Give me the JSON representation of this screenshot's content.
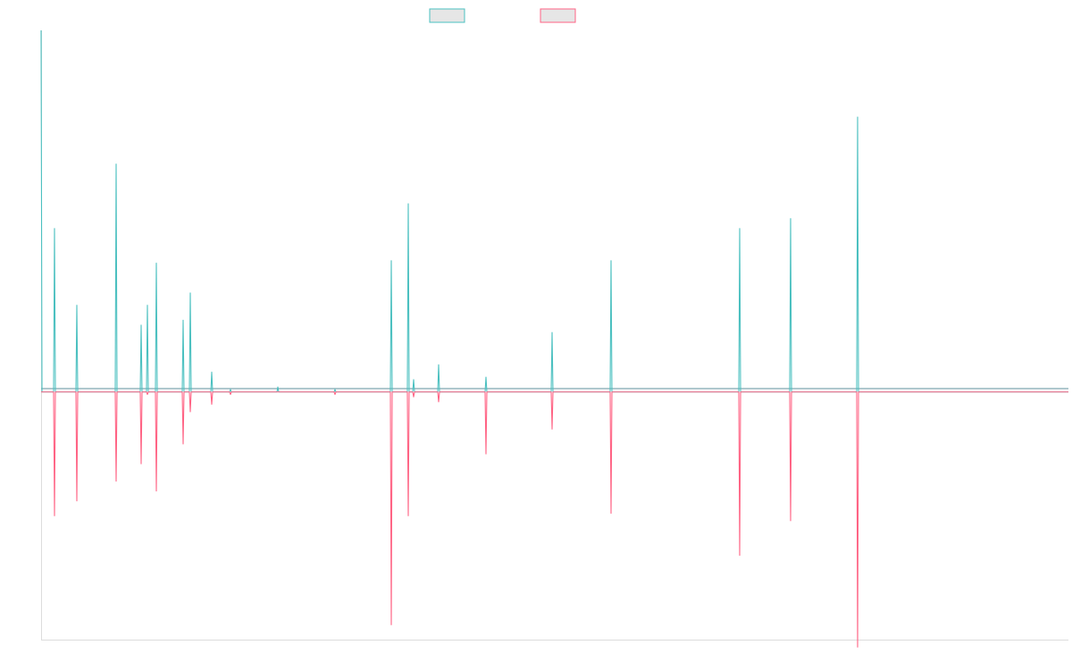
{
  "chart_data": {
    "type": "line",
    "title": "",
    "xlabel": "",
    "ylabel": "",
    "grid": false,
    "legend_position": "top-center",
    "ylim": [
      -100,
      146
    ],
    "xlim": [
      0,
      1150
    ],
    "series": [
      {
        "name": "",
        "color": "#4bc0c0",
        "fill": "#e6e6e6",
        "points": [
          [
            0,
            146
          ],
          [
            1,
            0
          ],
          [
            14,
            0
          ],
          [
            15,
            66
          ],
          [
            16,
            0
          ],
          [
            39,
            0
          ],
          [
            40,
            35
          ],
          [
            41,
            0
          ],
          [
            83,
            0
          ],
          [
            84,
            92
          ],
          [
            85,
            0
          ],
          [
            111,
            0
          ],
          [
            112,
            27
          ],
          [
            113,
            0
          ],
          [
            118,
            0
          ],
          [
            119,
            35
          ],
          [
            120,
            0
          ],
          [
            128,
            0
          ],
          [
            129,
            52
          ],
          [
            130,
            0
          ],
          [
            158,
            0
          ],
          [
            159,
            29
          ],
          [
            160,
            0
          ],
          [
            166,
            0
          ],
          [
            167,
            40
          ],
          [
            168,
            0
          ],
          [
            190,
            0
          ],
          [
            191,
            8
          ],
          [
            192,
            0
          ],
          [
            211,
            0
          ],
          [
            212,
            1
          ],
          [
            213,
            0
          ],
          [
            264,
            0
          ],
          [
            265,
            2
          ],
          [
            266,
            0
          ],
          [
            328,
            0
          ],
          [
            329,
            1
          ],
          [
            330,
            0
          ],
          [
            391,
            0
          ],
          [
            392,
            53
          ],
          [
            393,
            0
          ],
          [
            410,
            0
          ],
          [
            411,
            76
          ],
          [
            412,
            0
          ],
          [
            416,
            0
          ],
          [
            417,
            5
          ],
          [
            418,
            0
          ],
          [
            444,
            0
          ],
          [
            445,
            11
          ],
          [
            446,
            0
          ],
          [
            497,
            0
          ],
          [
            498,
            6
          ],
          [
            499,
            0
          ],
          [
            571,
            0
          ],
          [
            572,
            24
          ],
          [
            573,
            0
          ],
          [
            637,
            0
          ],
          [
            638,
            53
          ],
          [
            639,
            0
          ],
          [
            781,
            0
          ],
          [
            782,
            66
          ],
          [
            783,
            0
          ],
          [
            838,
            0
          ],
          [
            839,
            70
          ],
          [
            840,
            0
          ],
          [
            913,
            0
          ],
          [
            914,
            111
          ],
          [
            915,
            0
          ],
          [
            1150,
            0
          ]
        ]
      },
      {
        "name": "",
        "color": "#ff6384",
        "fill": "#e6e6e6",
        "points": [
          [
            0,
            0
          ],
          [
            14,
            0
          ],
          [
            15,
            -50
          ],
          [
            16,
            0
          ],
          [
            39,
            0
          ],
          [
            40,
            -44
          ],
          [
            41,
            0
          ],
          [
            83,
            0
          ],
          [
            84,
            -36
          ],
          [
            85,
            0
          ],
          [
            111,
            0
          ],
          [
            112,
            -29
          ],
          [
            113,
            0
          ],
          [
            118,
            0
          ],
          [
            119,
            -1
          ],
          [
            120,
            0
          ],
          [
            128,
            0
          ],
          [
            129,
            -40
          ],
          [
            130,
            0
          ],
          [
            158,
            0
          ],
          [
            159,
            -21
          ],
          [
            160,
            0
          ],
          [
            166,
            0
          ],
          [
            167,
            -8
          ],
          [
            168,
            0
          ],
          [
            190,
            0
          ],
          [
            191,
            -5
          ],
          [
            192,
            0
          ],
          [
            211,
            0
          ],
          [
            212,
            -1
          ],
          [
            213,
            0
          ],
          [
            328,
            0
          ],
          [
            329,
            -1
          ],
          [
            330,
            0
          ],
          [
            391,
            0
          ],
          [
            392,
            -94
          ],
          [
            393,
            0
          ],
          [
            410,
            0
          ],
          [
            411,
            -50
          ],
          [
            412,
            0
          ],
          [
            416,
            0
          ],
          [
            417,
            -2
          ],
          [
            418,
            0
          ],
          [
            444,
            0
          ],
          [
            445,
            -4
          ],
          [
            446,
            0
          ],
          [
            497,
            0
          ],
          [
            498,
            -25
          ],
          [
            499,
            0
          ],
          [
            571,
            0
          ],
          [
            572,
            -15
          ],
          [
            573,
            0
          ],
          [
            637,
            0
          ],
          [
            638,
            -49
          ],
          [
            639,
            0
          ],
          [
            781,
            0
          ],
          [
            782,
            -66
          ],
          [
            783,
            0
          ],
          [
            838,
            0
          ],
          [
            839,
            -52
          ],
          [
            840,
            0
          ],
          [
            913,
            0
          ],
          [
            914,
            -103
          ],
          [
            915,
            0
          ],
          [
            1150,
            0
          ]
        ]
      }
    ]
  }
}
